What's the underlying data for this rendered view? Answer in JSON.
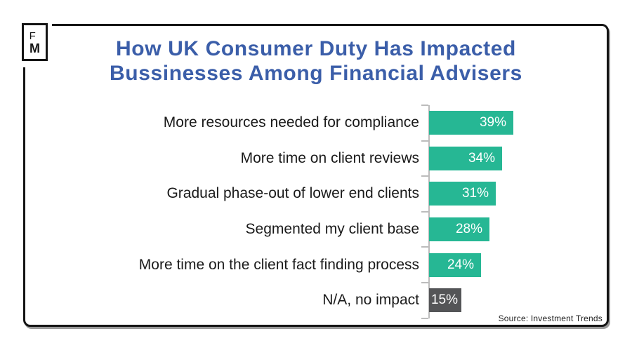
{
  "logo": {
    "line1": "F",
    "line2": "M"
  },
  "chart_data": {
    "type": "bar",
    "orientation": "horizontal",
    "title": "How UK Consumer Duty Has Impacted Bussinesses Among Financial Advisers",
    "title_lines": [
      "How UK Consumer Duty Has Impacted",
      "Bussinesses Among Financial Advisers"
    ],
    "categories": [
      "More resources needed for compliance",
      "More time on client reviews",
      "Gradual phase-out of lower end clients",
      "Segmented my client base",
      "More time on the client fact finding process",
      "N/A, no impact"
    ],
    "values": [
      39,
      34,
      31,
      28,
      24,
      15
    ],
    "display_values": [
      "39%",
      "34%",
      "31%",
      "28%",
      "24%",
      "15%"
    ],
    "value_suffix": "%",
    "bar_colors": [
      "#26b794",
      "#26b794",
      "#26b794",
      "#26b794",
      "#26b794",
      "#545557"
    ],
    "value_label_position": "inside-end",
    "xlim": [
      0,
      83
    ],
    "grid": false,
    "legend": false,
    "source": "Source: Investment Trends"
  },
  "colors": {
    "title": "#3b5ea9",
    "bar_teal": "#26b794",
    "bar_gray": "#545557",
    "axis": "#bcbcbc",
    "frame_border": "#141414",
    "label_text": "#1a1a1a",
    "value_text": "#ffffff"
  }
}
